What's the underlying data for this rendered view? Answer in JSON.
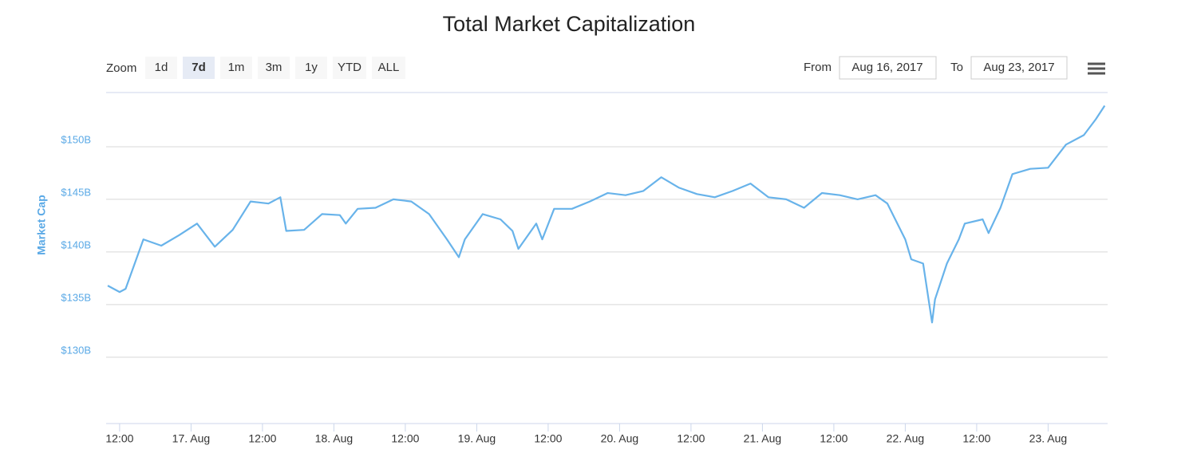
{
  "ui": {
    "zoom_label": "Zoom",
    "zoom_buttons": [
      "1d",
      "7d",
      "1m",
      "3m",
      "1y",
      "YTD",
      "ALL"
    ],
    "selected": "7d",
    "from_label": "From",
    "from_value": "Aug 16, 2017",
    "to_label": "To",
    "to_value": "Aug 23, 2017"
  },
  "chart_data": {
    "type": "line",
    "title": "Total Market Capitalization",
    "y_label": "Market Cap",
    "x": [
      "2017-08-16T10:00",
      "2017-08-16T12:00",
      "2017-08-16T13:00",
      "2017-08-16T16:00",
      "2017-08-16T19:00",
      "2017-08-16T22:00",
      "2017-08-17T01:00",
      "2017-08-17T04:00",
      "2017-08-17T07:00",
      "2017-08-17T10:00",
      "2017-08-17T13:00",
      "2017-08-17T15:00",
      "2017-08-17T16:00",
      "2017-08-17T19:00",
      "2017-08-17T22:00",
      "2017-08-18T01:00",
      "2017-08-18T02:00",
      "2017-08-18T04:00",
      "2017-08-18T07:00",
      "2017-08-18T10:00",
      "2017-08-18T13:00",
      "2017-08-18T16:00",
      "2017-08-18T19:00",
      "2017-08-18T21:00",
      "2017-08-18T22:00",
      "2017-08-19T01:00",
      "2017-08-19T04:00",
      "2017-08-19T06:00",
      "2017-08-19T07:00",
      "2017-08-19T10:00",
      "2017-08-19T11:00",
      "2017-08-19T13:00",
      "2017-08-19T16:00",
      "2017-08-19T19:00",
      "2017-08-19T22:00",
      "2017-08-20T01:00",
      "2017-08-20T04:00",
      "2017-08-20T07:00",
      "2017-08-20T10:00",
      "2017-08-20T13:00",
      "2017-08-20T16:00",
      "2017-08-20T19:00",
      "2017-08-20T22:00",
      "2017-08-21T01:00",
      "2017-08-21T04:00",
      "2017-08-21T07:00",
      "2017-08-21T10:00",
      "2017-08-21T13:00",
      "2017-08-21T16:00",
      "2017-08-21T19:00",
      "2017-08-21T21:00",
      "2017-08-22T00:00",
      "2017-08-22T01:00",
      "2017-08-22T03:00",
      "2017-08-22T04:00",
      "2017-08-22T04:30",
      "2017-08-22T05:00",
      "2017-08-22T07:00",
      "2017-08-22T09:00",
      "2017-08-22T10:00",
      "2017-08-22T13:00",
      "2017-08-22T14:00",
      "2017-08-22T16:00",
      "2017-08-22T18:00",
      "2017-08-22T21:00",
      "2017-08-23T00:00",
      "2017-08-23T03:00",
      "2017-08-23T06:00",
      "2017-08-23T08:00",
      "2017-08-23T09:30"
    ],
    "series": [
      {
        "name": "Market Cap",
        "color": "#68b3ea",
        "values": [
          136.8,
          136.2,
          136.5,
          141.2,
          140.6,
          141.6,
          142.7,
          140.5,
          142.1,
          144.8,
          144.6,
          145.2,
          142.0,
          142.1,
          143.6,
          143.5,
          142.7,
          144.1,
          144.2,
          145.0,
          144.8,
          143.6,
          141.2,
          139.5,
          141.2,
          143.6,
          143.1,
          142.0,
          140.3,
          142.7,
          141.2,
          144.1,
          144.1,
          144.8,
          145.6,
          145.4,
          145.8,
          147.1,
          146.1,
          145.5,
          145.2,
          145.8,
          146.5,
          145.2,
          145.0,
          144.2,
          145.6,
          145.4,
          145.0,
          145.4,
          144.6,
          141.2,
          139.3,
          138.9,
          135.2,
          133.3,
          135.5,
          138.9,
          141.2,
          142.7,
          143.1,
          141.8,
          144.2,
          147.4,
          147.9,
          148.0,
          150.2,
          151.1,
          152.6,
          153.9
        ]
      }
    ],
    "xlim": [
      "2017-08-16T09:44",
      "2017-08-23T10:00"
    ],
    "xticks": [
      {
        "value": "2017-08-16T12:00",
        "label": "12:00"
      },
      {
        "value": "2017-08-17T00:00",
        "label": "17. Aug"
      },
      {
        "value": "2017-08-17T12:00",
        "label": "12:00"
      },
      {
        "value": "2017-08-18T00:00",
        "label": "18. Aug"
      },
      {
        "value": "2017-08-18T12:00",
        "label": "12:00"
      },
      {
        "value": "2017-08-19T00:00",
        "label": "19. Aug"
      },
      {
        "value": "2017-08-19T12:00",
        "label": "12:00"
      },
      {
        "value": "2017-08-20T00:00",
        "label": "20. Aug"
      },
      {
        "value": "2017-08-20T12:00",
        "label": "12:00"
      },
      {
        "value": "2017-08-21T00:00",
        "label": "21. Aug"
      },
      {
        "value": "2017-08-21T12:00",
        "label": "12:00"
      },
      {
        "value": "2017-08-22T00:00",
        "label": "22. Aug"
      },
      {
        "value": "2017-08-22T12:00",
        "label": "12:00"
      },
      {
        "value": "2017-08-23T00:00",
        "label": "23. Aug"
      }
    ],
    "ylim": [
      123.7,
      155.15
    ],
    "yticks": [
      {
        "value": 130,
        "label": "$130B"
      },
      {
        "value": 135,
        "label": "$135B"
      },
      {
        "value": 140,
        "label": "$140B"
      },
      {
        "value": 145,
        "label": "$145B"
      },
      {
        "value": 150,
        "label": "$150B"
      }
    ],
    "grid": true
  }
}
